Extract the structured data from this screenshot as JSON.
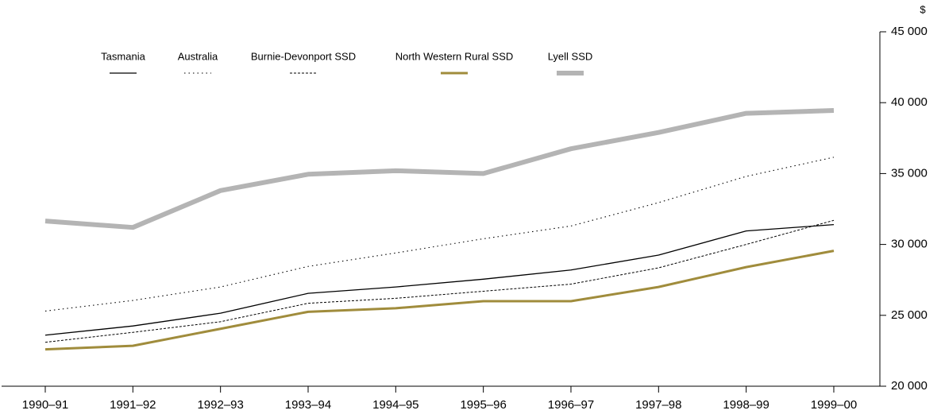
{
  "chart_data": {
    "type": "line",
    "y_label": "$",
    "categories": [
      "1990–91",
      "1991–92",
      "1992–93",
      "1993–94",
      "1994–95",
      "1995–96",
      "1996–97",
      "1997–98",
      "1998–99",
      "1999–00"
    ],
    "series": [
      {
        "name": "Tasmania",
        "color": "#000000",
        "linestyle": "solid",
        "values": [
          23600,
          24250,
          25150,
          26550,
          27000,
          27550,
          28200,
          29250,
          30950,
          31400
        ]
      },
      {
        "name": "Australia",
        "color": "#000000",
        "linestyle": "dotted",
        "values": [
          25300,
          26050,
          27000,
          28450,
          29400,
          30400,
          31300,
          32950,
          34800,
          36150
        ]
      },
      {
        "name": "Burnie-Devonport SSD",
        "color": "#000000",
        "linestyle": "dashed",
        "values": [
          23100,
          23800,
          24550,
          25850,
          26200,
          26700,
          27200,
          28350,
          30000,
          31700
        ]
      },
      {
        "name": "North Western Rural SSD",
        "color": "#a08c3c",
        "linestyle": "solid",
        "values": [
          22600,
          22850,
          24050,
          25250,
          25500,
          26000,
          26000,
          27000,
          28400,
          29550
        ]
      },
      {
        "name": "Lyell SSD",
        "color": "#b4b4b4",
        "linestyle": "solid",
        "values": [
          31650,
          31200,
          33800,
          34950,
          35200,
          35000,
          36750,
          37900,
          39250,
          39450
        ]
      }
    ],
    "ylim": [
      20000,
      45000
    ],
    "yticks": [
      {
        "value": 20000,
        "label": "20 000"
      },
      {
        "value": 25000,
        "label": "25 000"
      },
      {
        "value": 30000,
        "label": "30 000"
      },
      {
        "value": 35000,
        "label": "35 000"
      },
      {
        "value": 40000,
        "label": "40 000"
      },
      {
        "value": 45000,
        "label": "45 000"
      }
    ],
    "y_axis_side": "right",
    "grid": false,
    "legend": "top"
  }
}
